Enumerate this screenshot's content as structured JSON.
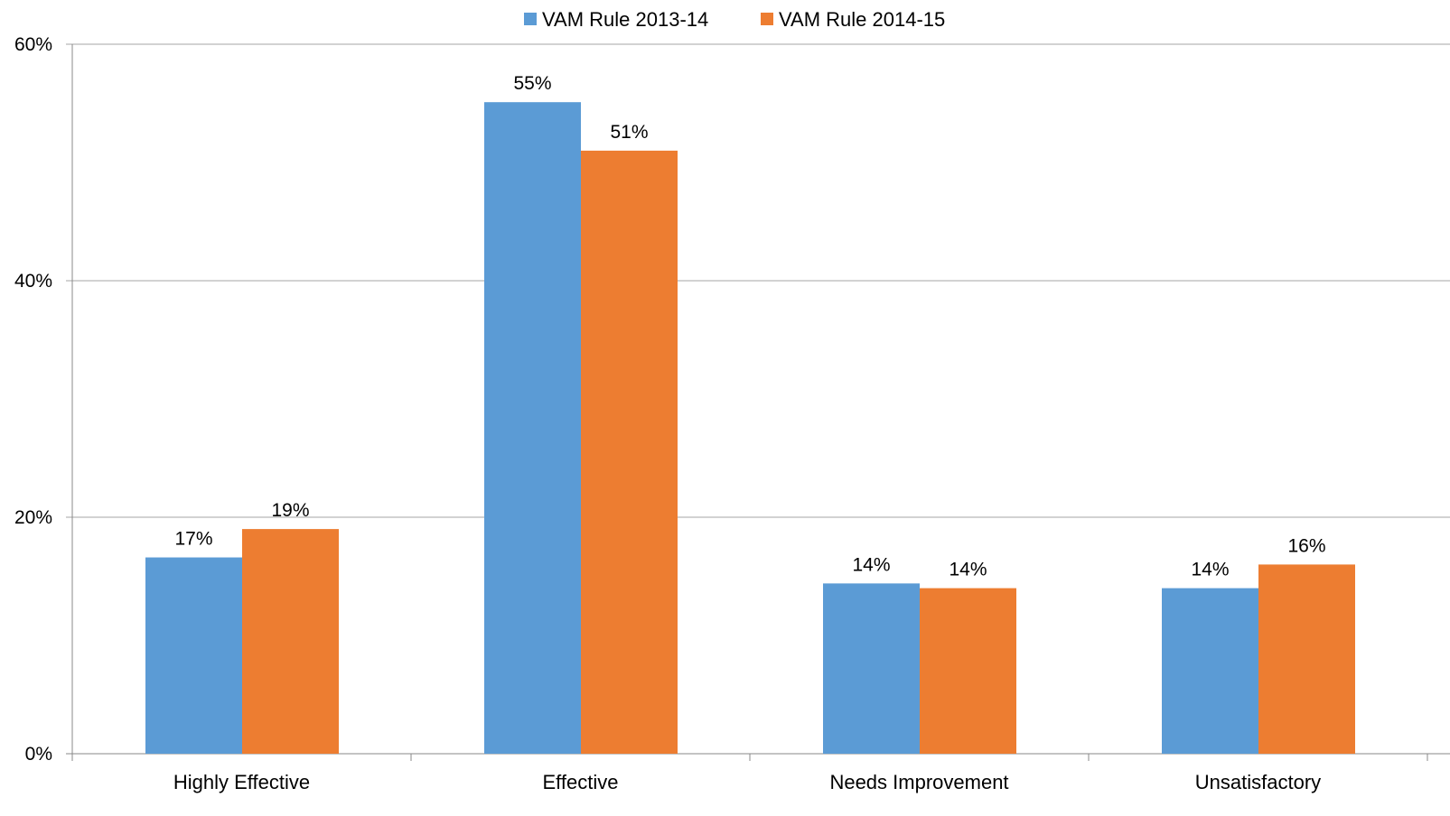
{
  "chart_data": {
    "type": "bar",
    "title": "",
    "xlabel": "",
    "ylabel": "",
    "categories": [
      "Highly Effective",
      "Effective",
      "Needs Improvement",
      "Unsatisfactory"
    ],
    "series": [
      {
        "name": "VAM Rule 2013-14",
        "color": "#5B9BD5",
        "values": [
          16.6,
          55.1,
          14.4,
          14.0
        ],
        "labels": [
          "17%",
          "55%",
          "14%",
          "14%"
        ]
      },
      {
        "name": "VAM Rule 2014-15",
        "color": "#ED7D31",
        "values": [
          19.0,
          51.0,
          14.0,
          16.0
        ],
        "labels": [
          "19%",
          "51%",
          "14%",
          "16%"
        ]
      }
    ],
    "ylim": [
      0,
      60
    ],
    "yticks": [
      0,
      20,
      40,
      60
    ],
    "ytick_labels": [
      "0%",
      "20%",
      "40%",
      "60%"
    ],
    "grid": true,
    "gridline_color": "#A6A6A6",
    "legend": "top-center"
  }
}
